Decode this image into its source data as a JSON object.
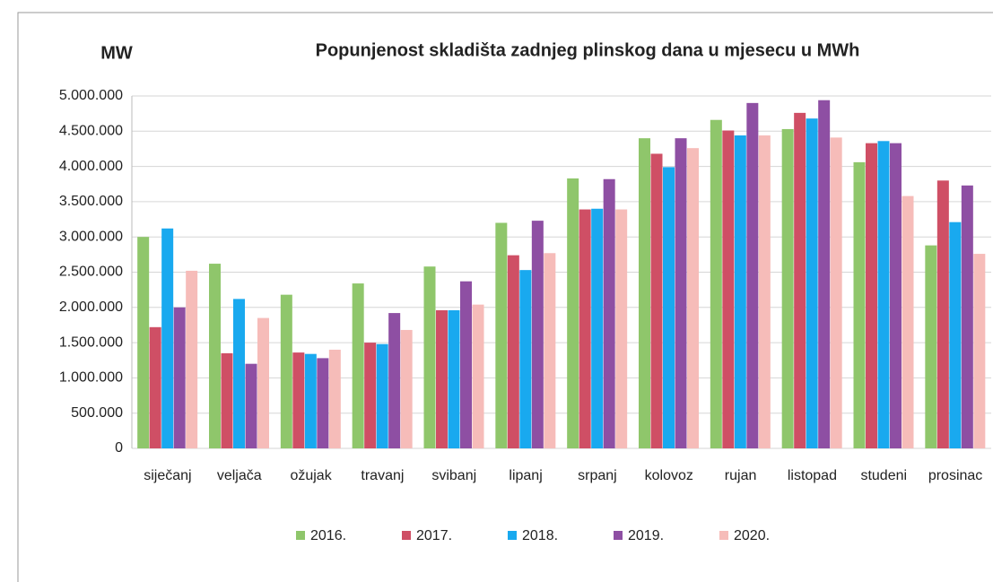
{
  "chart_data": {
    "type": "bar",
    "title": "Popunjenost skladišta zadnjeg plinskog dana u mjesecu u MWh",
    "y_label": "MW",
    "categories": [
      "siječanj",
      "veljača",
      "ožujak",
      "travanj",
      "svibanj",
      "lipanj",
      "srpanj",
      "kolovoz",
      "rujan",
      "listopad",
      "studeni",
      "prosinac"
    ],
    "series": [
      {
        "name": "2016.",
        "color": "#8fc66b",
        "values": [
          3000000,
          2620000,
          2180000,
          2340000,
          2580000,
          3200000,
          3830000,
          4400000,
          4660000,
          4530000,
          4060000,
          2880000
        ]
      },
      {
        "name": "2017.",
        "color": "#cf4f65",
        "values": [
          1720000,
          1350000,
          1360000,
          1500000,
          1960000,
          2740000,
          3390000,
          4180000,
          4510000,
          4760000,
          4330000,
          3800000
        ]
      },
      {
        "name": "2018.",
        "color": "#19a9ef",
        "values": [
          3120000,
          2120000,
          1340000,
          1480000,
          1960000,
          2530000,
          3400000,
          3990000,
          4440000,
          4680000,
          4360000,
          3210000
        ]
      },
      {
        "name": "2019.",
        "color": "#8e4fa3",
        "values": [
          2000000,
          1200000,
          1280000,
          1920000,
          2370000,
          3230000,
          3820000,
          4400000,
          4900000,
          4940000,
          4330000,
          3730000
        ]
      },
      {
        "name": "2020.",
        "color": "#f6bcb9",
        "values": [
          2520000,
          1850000,
          1400000,
          1680000,
          2040000,
          2770000,
          3390000,
          4260000,
          4440000,
          4410000,
          3580000,
          2760000
        ]
      }
    ],
    "ylim": [
      0,
      5000000
    ],
    "yticks": [
      0,
      {
        "value": 500000,
        "label": "500.000"
      },
      {
        "value": 1000000,
        "label": "1.000.000"
      },
      {
        "value": 1500000,
        "label": "1.500.000"
      },
      {
        "value": 2000000,
        "label": "2.000.000"
      },
      {
        "value": 2500000,
        "label": "2.500.000"
      },
      {
        "value": 3000000,
        "label": "3.000.000"
      },
      {
        "value": 3500000,
        "label": "3.500.000"
      },
      {
        "value": 4000000,
        "label": "4.000.000"
      },
      {
        "value": 4500000,
        "label": "4.500.000"
      },
      {
        "value": 5000000,
        "label": "5.000.000"
      }
    ],
    "grid": true,
    "legend": "bottom"
  }
}
